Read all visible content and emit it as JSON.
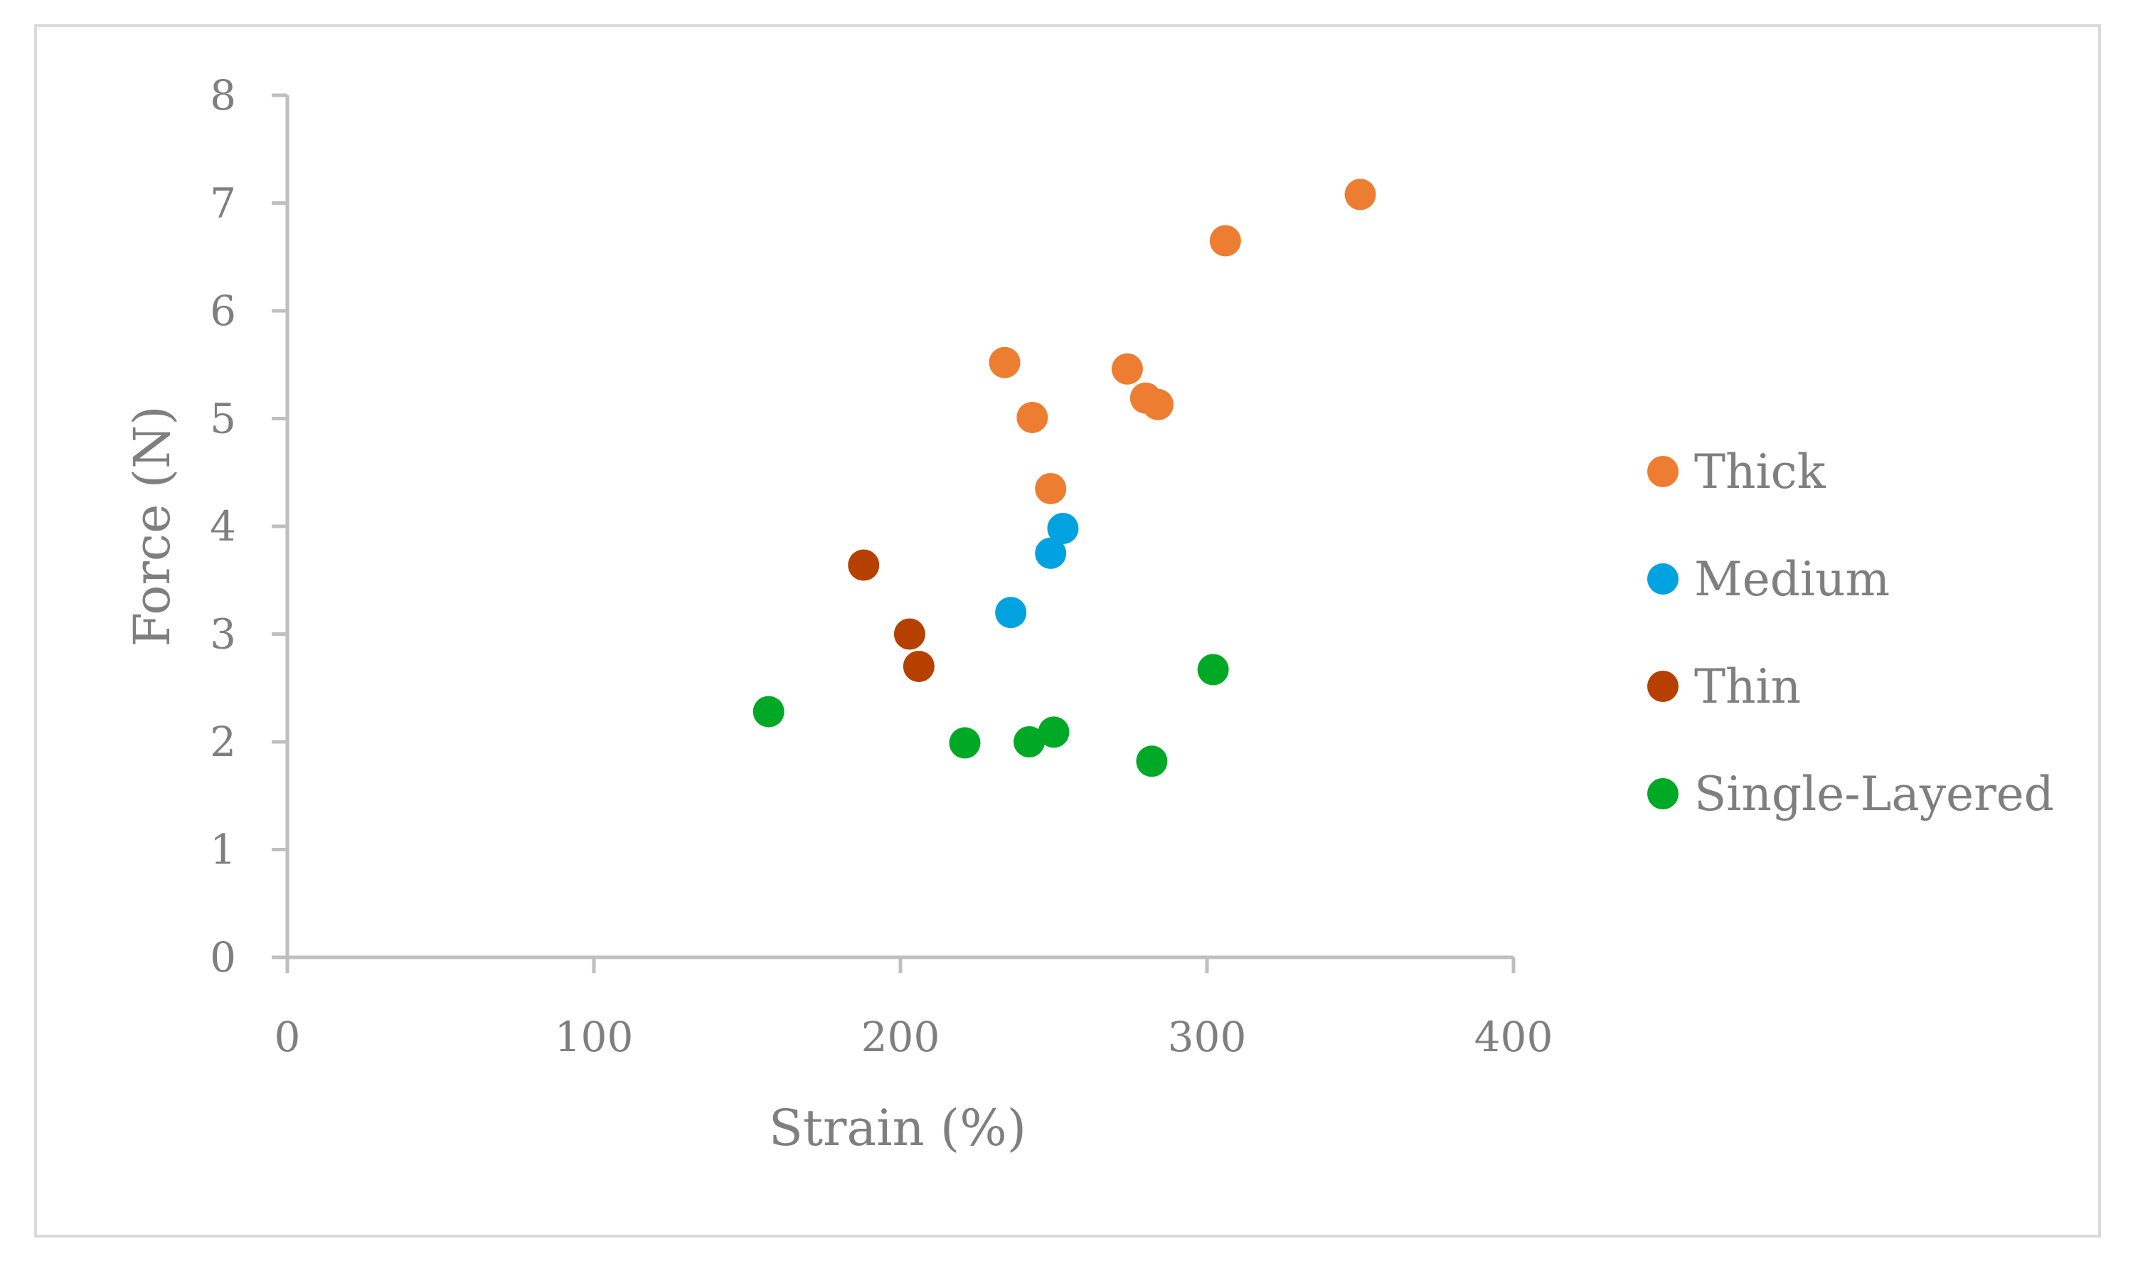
{
  "chart_data": {
    "type": "scatter",
    "title": "",
    "xlabel": "Strain (%)",
    "ylabel": "Force (N)",
    "xlim": [
      0,
      400
    ],
    "ylim": [
      0,
      8
    ],
    "xticks": [
      0,
      100,
      200,
      300,
      400
    ],
    "yticks": [
      0,
      1,
      2,
      3,
      4,
      5,
      6,
      7,
      8
    ],
    "grid": false,
    "legend_position": "right",
    "series": [
      {
        "name": "Thick",
        "color": "#ed7d31",
        "points": [
          {
            "x": 234,
            "y": 5.52
          },
          {
            "x": 243,
            "y": 5.01
          },
          {
            "x": 249,
            "y": 4.35
          },
          {
            "x": 274,
            "y": 5.46
          },
          {
            "x": 280,
            "y": 5.19
          },
          {
            "x": 284,
            "y": 5.13
          },
          {
            "x": 306,
            "y": 6.65
          },
          {
            "x": 350,
            "y": 7.08
          }
        ]
      },
      {
        "name": "Medium",
        "color": "#00a2e0",
        "points": [
          {
            "x": 236,
            "y": 3.2
          },
          {
            "x": 249,
            "y": 3.75
          },
          {
            "x": 253,
            "y": 3.98
          }
        ]
      },
      {
        "name": "Thin",
        "color": "#b54000",
        "points": [
          {
            "x": 188,
            "y": 3.64
          },
          {
            "x": 203,
            "y": 3.0
          },
          {
            "x": 206,
            "y": 2.7
          }
        ]
      },
      {
        "name": "Single-Layered",
        "color": "#00a925",
        "points": [
          {
            "x": 157,
            "y": 2.28
          },
          {
            "x": 221,
            "y": 1.99
          },
          {
            "x": 242,
            "y": 2.0
          },
          {
            "x": 250,
            "y": 2.09
          },
          {
            "x": 282,
            "y": 1.82
          },
          {
            "x": 302,
            "y": 2.67
          }
        ]
      }
    ]
  }
}
